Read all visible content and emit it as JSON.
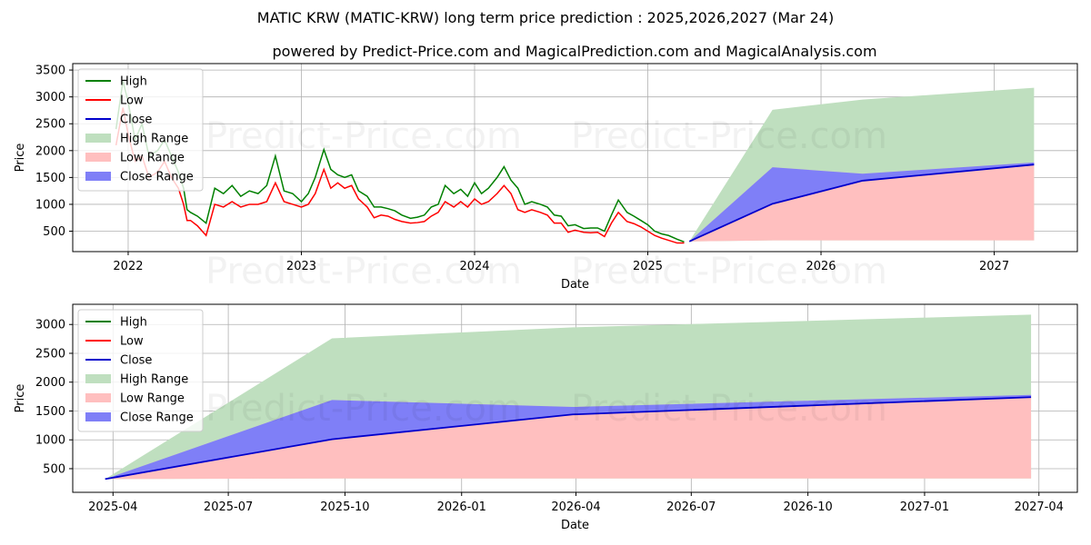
{
  "title": "MATIC KRW (MATIC-KRW) long term price prediction : 2025,2026,2027 (Mar 24)",
  "subtitle": "powered by Predict-Price.com and MagicalPrediction.com and MagicalAnalysis.com",
  "watermark": "Predict-Price.com",
  "colors": {
    "high": "#008000",
    "low": "#ff0000",
    "close": "#0000cc",
    "high_range": "#bfdfbf",
    "low_range": "#ffbfbf",
    "close_range": "#7f7ff7"
  },
  "chart_data": [
    {
      "type": "line",
      "panel": "top",
      "xlabel": "Date",
      "ylabel": "Price",
      "xlim": [
        2021.68,
        2027.48
      ],
      "ylim": [
        120,
        3620
      ],
      "x_ticks": [
        {
          "value": 2022,
          "label": "2022"
        },
        {
          "value": 2023,
          "label": "2023"
        },
        {
          "value": 2024,
          "label": "2024"
        },
        {
          "value": 2025,
          "label": "2025"
        },
        {
          "value": 2026,
          "label": "2026"
        },
        {
          "value": 2027,
          "label": "2027"
        }
      ],
      "y_ticks": [
        500,
        1000,
        1500,
        2000,
        2500,
        3000,
        3500
      ],
      "legend": {
        "position": "top-left",
        "entries": [
          {
            "label": "High",
            "kind": "line",
            "key": "high"
          },
          {
            "label": "Low",
            "kind": "line",
            "key": "low"
          },
          {
            "label": "Close",
            "kind": "line",
            "key": "close"
          },
          {
            "label": "High Range",
            "kind": "patch",
            "key": "high_range"
          },
          {
            "label": "Low Range",
            "kind": "patch",
            "key": "low_range"
          },
          {
            "label": "Close Range",
            "kind": "patch",
            "key": "close_range"
          }
        ]
      },
      "history": {
        "x": [
          2021.93,
          2021.97,
          2022.0,
          2022.04,
          2022.08,
          2022.12,
          2022.17,
          2022.21,
          2022.25,
          2022.29,
          2022.32,
          2022.34,
          2022.36,
          2022.4,
          2022.45,
          2022.5,
          2022.55,
          2022.6,
          2022.65,
          2022.7,
          2022.75,
          2022.8,
          2022.85,
          2022.9,
          2022.95,
          2023.0,
          2023.04,
          2023.08,
          2023.13,
          2023.17,
          2023.21,
          2023.25,
          2023.29,
          2023.33,
          2023.38,
          2023.42,
          2023.46,
          2023.5,
          2023.54,
          2023.58,
          2023.63,
          2023.67,
          2023.71,
          2023.75,
          2023.79,
          2023.83,
          2023.88,
          2023.92,
          2023.96,
          2024.0,
          2024.04,
          2024.08,
          2024.13,
          2024.17,
          2024.21,
          2024.25,
          2024.29,
          2024.33,
          2024.38,
          2024.42,
          2024.46,
          2024.5,
          2024.54,
          2024.58,
          2024.63,
          2024.67,
          2024.71,
          2024.75,
          2024.79,
          2024.83,
          2024.88,
          2024.92,
          2024.96,
          2025.0,
          2025.04,
          2025.08,
          2025.12,
          2025.17,
          2025.21
        ],
        "high": [
          2400,
          3300,
          2900,
          2200,
          2500,
          1900,
          2000,
          2200,
          1900,
          1600,
          1300,
          900,
          850,
          780,
          650,
          1300,
          1200,
          1350,
          1150,
          1250,
          1200,
          1350,
          1900,
          1250,
          1200,
          1050,
          1200,
          1500,
          2020,
          1650,
          1550,
          1500,
          1550,
          1250,
          1150,
          950,
          950,
          920,
          880,
          800,
          740,
          760,
          800,
          950,
          1000,
          1350,
          1200,
          1280,
          1150,
          1400,
          1200,
          1300,
          1500,
          1700,
          1450,
          1300,
          1000,
          1050,
          1000,
          950,
          800,
          780,
          600,
          620,
          550,
          560,
          560,
          500,
          800,
          1080,
          850,
          780,
          700,
          620,
          500,
          450,
          420,
          350,
          300
        ],
        "low": [
          2100,
          2800,
          2300,
          1800,
          1900,
          1500,
          1600,
          1800,
          1500,
          1300,
          1000,
          700,
          700,
          600,
          420,
          1000,
          950,
          1050,
          950,
          1000,
          1000,
          1050,
          1400,
          1050,
          1000,
          950,
          1000,
          1200,
          1650,
          1300,
          1400,
          1300,
          1350,
          1100,
          950,
          750,
          800,
          780,
          720,
          680,
          650,
          660,
          680,
          780,
          850,
          1050,
          950,
          1050,
          950,
          1100,
          1000,
          1050,
          1200,
          1350,
          1200,
          900,
          850,
          900,
          850,
          800,
          650,
          650,
          480,
          520,
          480,
          470,
          480,
          400,
          650,
          850,
          680,
          640,
          580,
          500,
          420,
          370,
          330,
          280,
          280
        ],
        "close": [
          2250,
          3100,
          2600,
          2000,
          2200,
          1700,
          1800,
          2000,
          1700,
          1450,
          1150,
          800,
          780,
          700,
          550,
          1150,
          1100,
          1200,
          1050,
          1150,
          1100,
          1200,
          1600,
          1150,
          1100,
          1000,
          1100,
          1350,
          1850,
          1450,
          1480,
          1400,
          1450,
          1180,
          1050,
          850,
          880,
          850,
          800,
          740,
          700,
          710,
          740,
          870,
          930,
          1200,
          1050,
          1150,
          1050,
          1250,
          1100,
          1180,
          1350,
          1550,
          1300,
          1100,
          920,
          980,
          920,
          880,
          720,
          710,
          540,
          570,
          510,
          520,
          520,
          450,
          720,
          950,
          760,
          700,
          640,
          560,
          460,
          410,
          380,
          310,
          300
        ]
      },
      "forecast": {
        "x": [
          2025.24,
          2025.72,
          2026.24,
          2027.23
        ],
        "high_range_upper": [
          310,
          2760,
          2950,
          3170
        ],
        "close_range_upper": [
          310,
          1690,
          1570,
          1780
        ],
        "close": [
          310,
          1010,
          1440,
          1740
        ],
        "low_range_lower": [
          310,
          330,
          330,
          330
        ]
      }
    },
    {
      "type": "line",
      "panel": "bottom",
      "xlabel": "Date",
      "ylabel": "Price",
      "xlim": [
        2025.16,
        2027.33
      ],
      "ylim": [
        90,
        3350
      ],
      "x_ticks": [
        {
          "value": 2025.247,
          "label": "2025-04"
        },
        {
          "value": 2025.496,
          "label": "2025-07"
        },
        {
          "value": 2025.748,
          "label": "2025-10"
        },
        {
          "value": 2026.0,
          "label": "2026-01"
        },
        {
          "value": 2026.247,
          "label": "2026-04"
        },
        {
          "value": 2026.496,
          "label": "2026-07"
        },
        {
          "value": 2026.748,
          "label": "2026-10"
        },
        {
          "value": 2027.0,
          "label": "2027-01"
        },
        {
          "value": 2027.247,
          "label": "2027-04"
        }
      ],
      "y_ticks": [
        500,
        1000,
        1500,
        2000,
        2500,
        3000
      ],
      "legend": {
        "position": "top-left",
        "entries": [
          {
            "label": "High",
            "kind": "line",
            "key": "high"
          },
          {
            "label": "Low",
            "kind": "line",
            "key": "low"
          },
          {
            "label": "Close",
            "kind": "line",
            "key": "close"
          },
          {
            "label": "High Range",
            "kind": "patch",
            "key": "high_range"
          },
          {
            "label": "Low Range",
            "kind": "patch",
            "key": "low_range"
          },
          {
            "label": "Close Range",
            "kind": "patch",
            "key": "close_range"
          }
        ]
      },
      "forecast": {
        "x": [
          2025.23,
          2025.72,
          2026.24,
          2027.23
        ],
        "high_range_upper": [
          320,
          2760,
          2950,
          3170
        ],
        "close_range_upper": [
          320,
          1690,
          1570,
          1780
        ],
        "close": [
          320,
          1010,
          1440,
          1740
        ],
        "low_range_lower": [
          320,
          330,
          330,
          330
        ]
      }
    }
  ]
}
